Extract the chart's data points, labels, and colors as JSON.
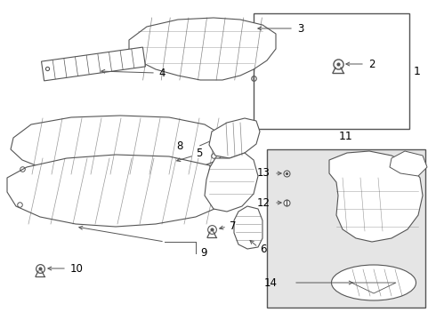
{
  "bg_color": "#ffffff",
  "box_bg": "#e8e8e8",
  "line_color": "#555555",
  "text_color": "#000000",
  "fig_w": 4.9,
  "fig_h": 3.6,
  "dpi": 100
}
